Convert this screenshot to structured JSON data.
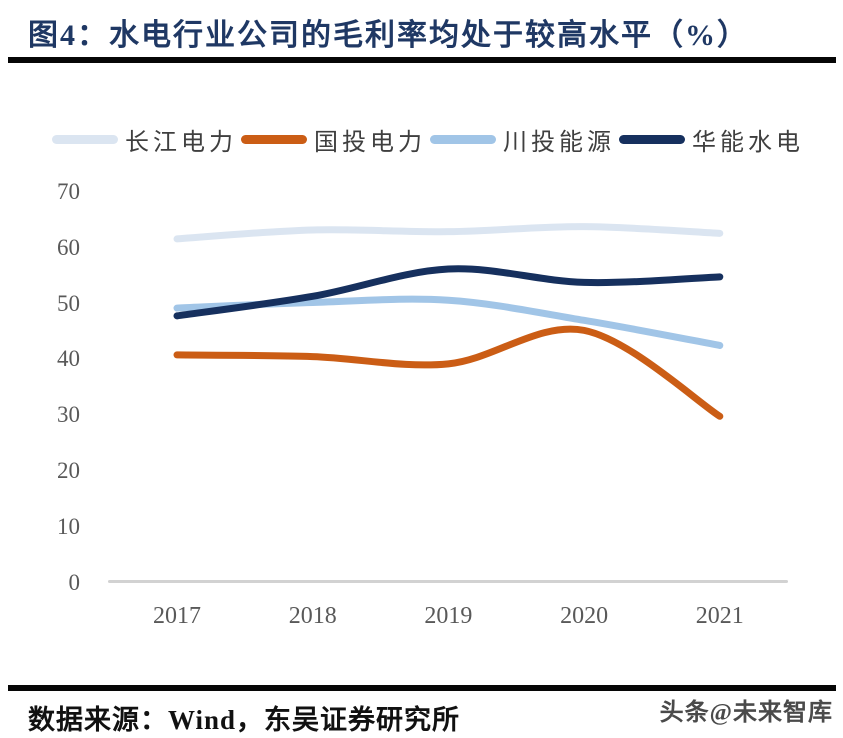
{
  "header": {
    "title": "图4：水电行业公司的毛利率均处于较高水平（%）"
  },
  "chart_data": {
    "type": "line",
    "title": "图4：水电行业公司的毛利率均处于较高水平（%）",
    "x": [
      "2017",
      "2018",
      "2019",
      "2020",
      "2021"
    ],
    "series": [
      {
        "name": "长江电力",
        "color": "#dbe5f1",
        "values": [
          61.6,
          63.2,
          62.9,
          63.8,
          62.6
        ]
      },
      {
        "name": "国投电力",
        "color": "#cb5d15",
        "values": [
          40.8,
          40.5,
          39.2,
          45.2,
          29.8
        ]
      },
      {
        "name": "川投能源",
        "color": "#a1c5e7",
        "values": [
          49.2,
          50.2,
          50.6,
          47.0,
          42.5
        ]
      },
      {
        "name": "华能水电",
        "color": "#16305e",
        "values": [
          47.8,
          51.3,
          56.2,
          53.8,
          54.8
        ]
      }
    ],
    "ylim": [
      0,
      70
    ],
    "yticks": [
      0,
      10,
      20,
      30,
      40,
      50,
      60,
      70
    ],
    "grid": false,
    "legend_position": "top",
    "smooth_lines": true
  },
  "footer": {
    "source": "数据来源：Wind，东吴证券研究所",
    "watermark": "头条@未来智库"
  }
}
